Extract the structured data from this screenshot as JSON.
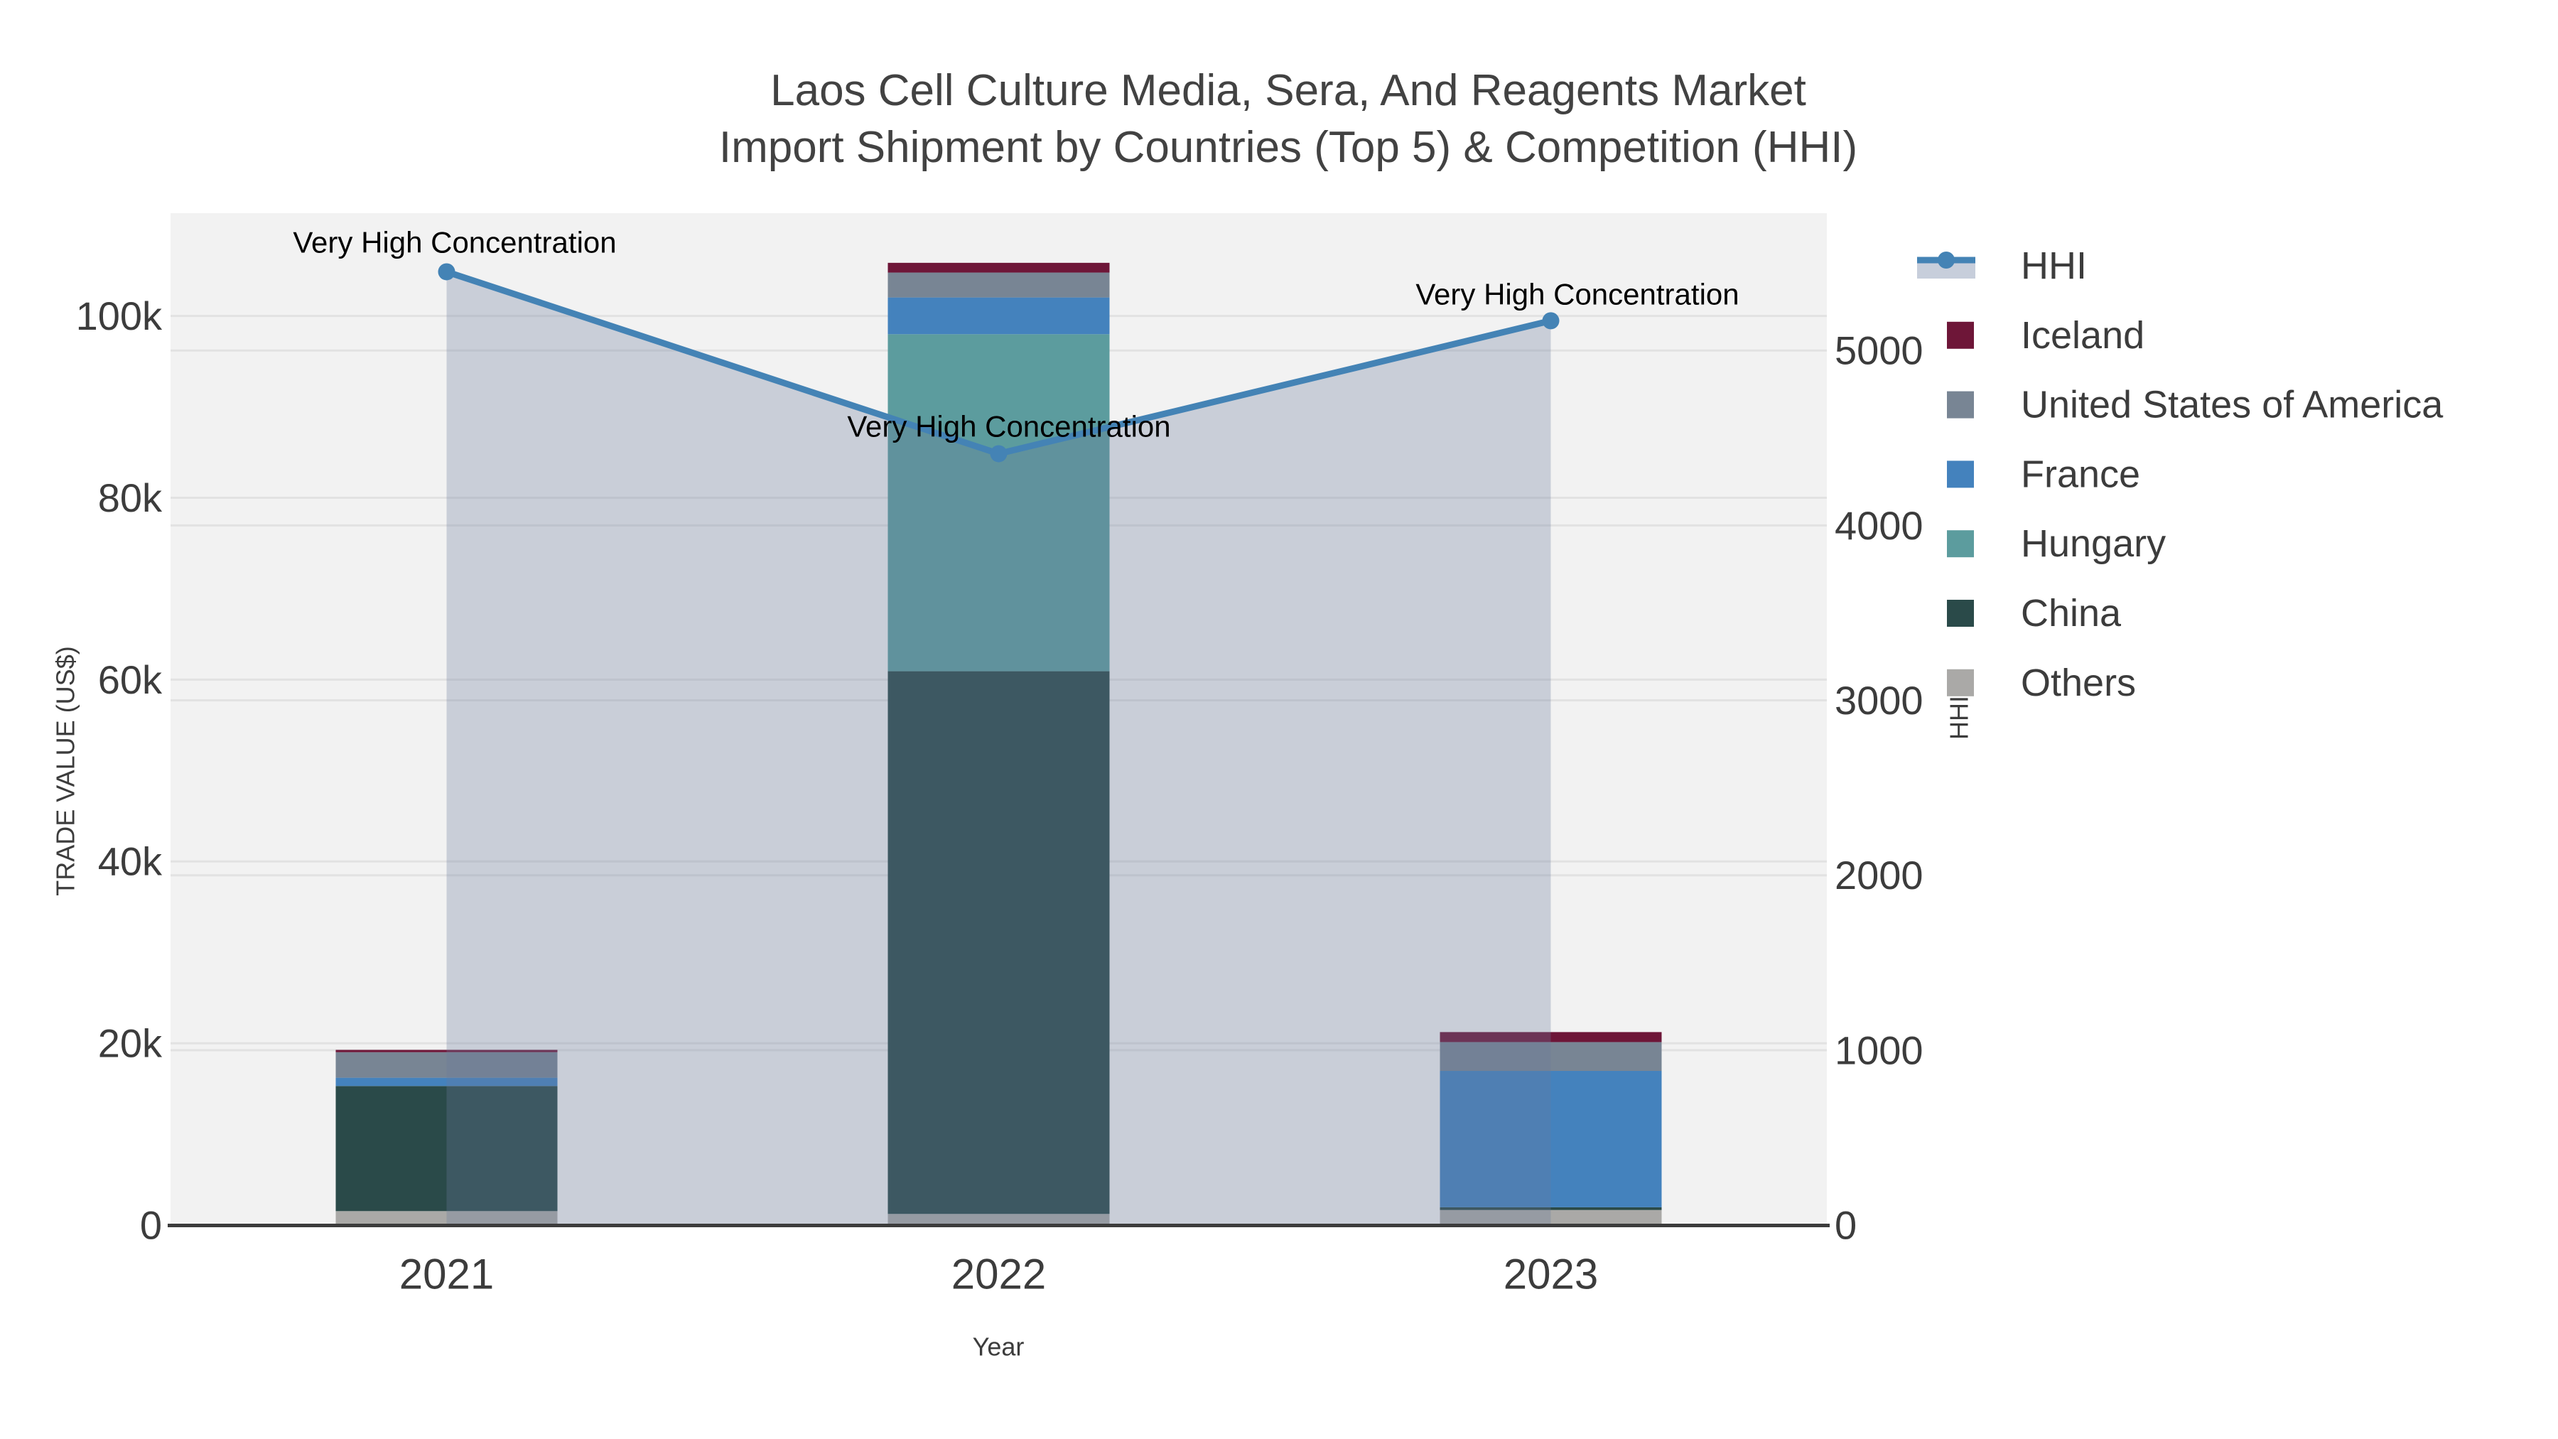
{
  "chart_data": {
    "type": "bar",
    "subtype": "stacked-bars-with-line-area",
    "title": {
      "line1": "Laos Cell Culture Media, Sera, And Reagents Market",
      "line2": "Import Shipment by Countries (Top 5) & Competition (HHI)"
    },
    "categories": [
      "2021",
      "2022",
      "2023"
    ],
    "xlabel": "Year",
    "y_left": {
      "label": "TRADE VALUE (US$)",
      "max": 111300,
      "ticks": [
        {
          "v": 0,
          "label": "0"
        },
        {
          "v": 20000,
          "label": "20k"
        },
        {
          "v": 40000,
          "label": "40k"
        },
        {
          "v": 60000,
          "label": "60k"
        },
        {
          "v": 80000,
          "label": "80k"
        },
        {
          "v": 100000,
          "label": "100k"
        }
      ]
    },
    "y_right": {
      "label": "HHI",
      "max": 5785,
      "ticks": [
        {
          "v": 0,
          "label": "0"
        },
        {
          "v": 1000,
          "label": "1000"
        },
        {
          "v": 2000,
          "label": "2000"
        },
        {
          "v": 3000,
          "label": "3000"
        },
        {
          "v": 4000,
          "label": "4000"
        },
        {
          "v": 5000,
          "label": "5000"
        }
      ]
    },
    "series": [
      {
        "name": "Others",
        "color": "#AAA9A7",
        "values": [
          1540,
          1230,
          1660
        ]
      },
      {
        "name": "China",
        "color": "#2A4A49",
        "values": [
          13760,
          59690,
          300
        ]
      },
      {
        "name": "Hungary",
        "color": "#5C9C9E",
        "values": [
          0,
          37070,
          0
        ]
      },
      {
        "name": "France",
        "color": "#4482BD",
        "values": [
          910,
          4040,
          15000
        ]
      },
      {
        "name": "United States of America",
        "color": "#788594",
        "values": [
          2810,
          2740,
          3170
        ]
      },
      {
        "name": "Iceland",
        "color": "#6E1638",
        "values": [
          250,
          1070,
          1100
        ]
      }
    ],
    "totals": [
      19270,
      105840,
      21230
    ],
    "hhi": {
      "name": "HHI",
      "color": "#4483B5",
      "fill": "rgba(105,122,155,0.30)",
      "legend_band": "#C7CEDB",
      "values": [
        5450,
        4410,
        5170
      ]
    },
    "annotations": [
      {
        "text": "Very High Concentration",
        "x": 640,
        "y": 341
      },
      {
        "text": "Very High Concentration",
        "x": 1420,
        "y": 600
      },
      {
        "text": "Very High Concentration",
        "x": 2220,
        "y": 414
      }
    ],
    "legend": [
      {
        "label": "HHI",
        "kind": "line",
        "color": "#4483B5"
      },
      {
        "label": "Iceland",
        "kind": "box",
        "color": "#6E1638"
      },
      {
        "label": "United States of America",
        "kind": "box",
        "color": "#788594"
      },
      {
        "label": "France",
        "kind": "box",
        "color": "#4482BD"
      },
      {
        "label": "Hungary",
        "kind": "box",
        "color": "#5C9C9E"
      },
      {
        "label": "China",
        "kind": "box",
        "color": "#2A4A49"
      },
      {
        "label": "Others",
        "kind": "box",
        "color": "#AAA9A7"
      }
    ],
    "style": {
      "plot_bg": "#F2F2F2",
      "grid": "#E2E2E2",
      "axis_line": "#3C3C3C",
      "text": "#3C3C3C",
      "annotation_text": "#000000"
    }
  }
}
